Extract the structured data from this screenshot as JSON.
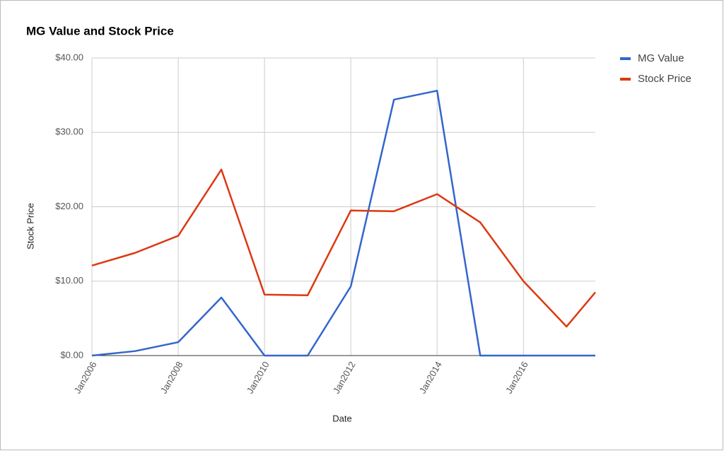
{
  "chart_data": {
    "type": "line",
    "title": "MG Value and Stock Price",
    "x_label": "Date",
    "y_label": "Stock Price",
    "x": [
      "2006-01",
      "2007-01",
      "2008-01",
      "2009-01",
      "2010-01",
      "2011-01",
      "2012-01",
      "2013-01",
      "2014-01",
      "2015-01",
      "2016-01",
      "2017-01",
      "2017-09"
    ],
    "series": [
      {
        "name": "MG Value",
        "color": "#3366cc",
        "values": [
          0,
          0.6,
          1.8,
          7.8,
          0,
          0,
          9.3,
          34.4,
          35.6,
          0,
          0,
          0,
          0
        ]
      },
      {
        "name": "Stock Price",
        "color": "#dc3912",
        "values": [
          12.1,
          13.8,
          16.1,
          25.0,
          8.2,
          8.1,
          19.5,
          19.4,
          21.7,
          17.9,
          10.0,
          3.9,
          8.5
        ]
      }
    ],
    "xlim": [
      "2006-01",
      "2017-09"
    ],
    "xticks": [
      {
        "value": "2006-01",
        "label": "Jan2006"
      },
      {
        "value": "2008-01",
        "label": "Jan2008"
      },
      {
        "value": "2010-01",
        "label": "Jan2010"
      },
      {
        "value": "2012-01",
        "label": "Jan2012"
      },
      {
        "value": "2014-01",
        "label": "Jan2014"
      },
      {
        "value": "2016-01",
        "label": "Jan2016"
      }
    ],
    "ylim": [
      0,
      40
    ],
    "yticks": [
      {
        "value": 0,
        "label": "$0.00"
      },
      {
        "value": 10,
        "label": "$10.00"
      },
      {
        "value": 20,
        "label": "$20.00"
      },
      {
        "value": 30,
        "label": "$30.00"
      },
      {
        "value": 40,
        "label": "$40.00"
      }
    ],
    "grid": true,
    "legend": "right"
  }
}
